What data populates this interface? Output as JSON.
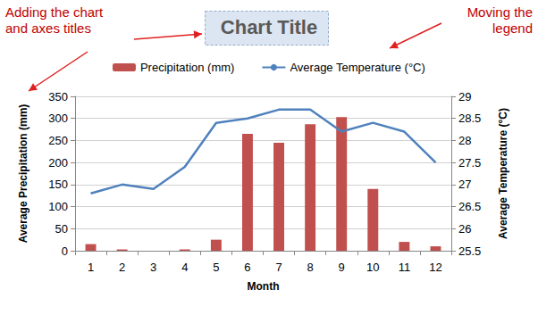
{
  "chart_data": {
    "type": "bar",
    "title": "Chart Title",
    "categories": [
      "1",
      "2",
      "3",
      "4",
      "5",
      "6",
      "7",
      "8",
      "9",
      "10",
      "11",
      "12"
    ],
    "series": [
      {
        "name": "Precipitation (mm)",
        "type": "bar",
        "color": "#c0504d",
        "values": [
          15,
          3,
          0,
          3,
          25,
          265,
          245,
          287,
          303,
          140,
          20,
          10
        ]
      },
      {
        "name": "Average Temperature (°C)",
        "type": "line",
        "color": "#4f81bd",
        "axis": "y2",
        "values": [
          26.8,
          27.0,
          26.9,
          27.4,
          28.4,
          28.5,
          28.7,
          28.7,
          28.2,
          28.4,
          28.2,
          27.5
        ]
      }
    ],
    "x_label": "Month",
    "y_label": "Average Precipitation (mm)",
    "y2_label": "Average Temperature (°C)",
    "ylim": [
      0,
      350
    ],
    "yticks": [
      0,
      50,
      100,
      150,
      200,
      250,
      300,
      350
    ],
    "y2lim": [
      25.5,
      29
    ],
    "y2ticks": [
      25.5,
      26,
      26.5,
      27,
      27.5,
      28,
      28.5,
      29
    ],
    "grid": true,
    "legend": "top",
    "annotations": [
      {
        "text": "Adding the chart\nand axes titles"
      },
      {
        "text": "Moving the\nlegend"
      }
    ]
  }
}
